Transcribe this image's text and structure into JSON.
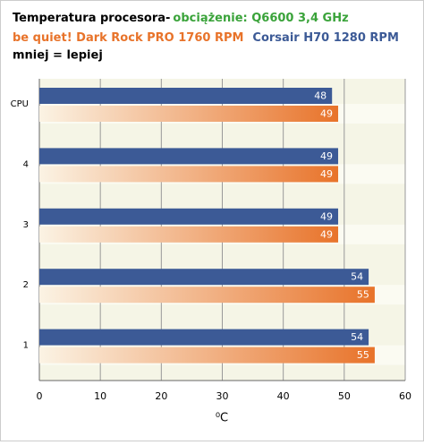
{
  "chart_data": {
    "type": "bar",
    "orientation": "horizontal",
    "title": "Temperatura procesora-",
    "title_highlight": "obciążenie: Q6600 3,4 GHz",
    "note": "mniej = lepiej",
    "x_label": "⁰C",
    "categories": [
      "CPU",
      "4",
      "3",
      "2",
      "1"
    ],
    "series": [
      {
        "name": "be quiet! Dark Rock PRO 1760  RPM",
        "color": "#e8732a",
        "values": [
          49,
          49,
          49,
          55,
          55
        ]
      },
      {
        "name": "Corsair H70 1280  RPM",
        "color": "#3c5a96",
        "values": [
          48,
          49,
          49,
          54,
          54
        ]
      }
    ],
    "xlim": [
      0,
      60
    ],
    "xticks": [
      0,
      10,
      20,
      30,
      40,
      50,
      60
    ],
    "grid": true
  }
}
